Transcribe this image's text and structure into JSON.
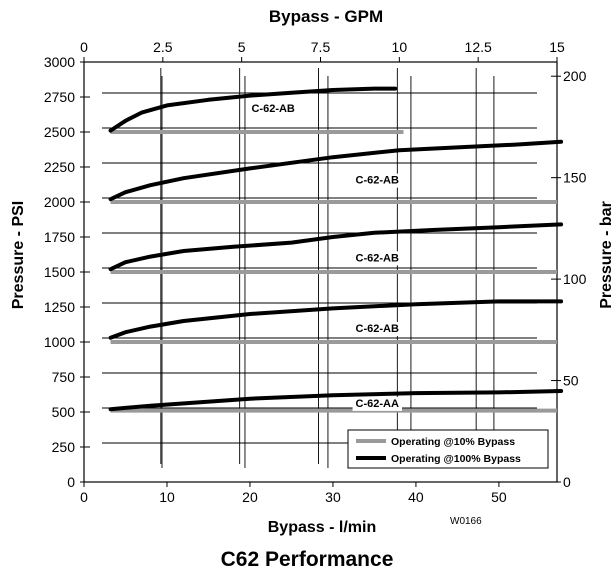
{
  "chart_data": {
    "type": "line",
    "title": "C62 Performance",
    "figure_id": "W0166",
    "x_top": {
      "label": "Bypass - GPM",
      "range": [
        0,
        15
      ],
      "ticks": [
        "0",
        "2.5",
        "5",
        "7.5",
        "10",
        "12.5",
        "15"
      ]
    },
    "x_bottom": {
      "label": "Bypass - l/min",
      "range": [
        0,
        57
      ],
      "ticks": [
        "0",
        "10",
        "20",
        "30",
        "40",
        "50"
      ]
    },
    "y_left": {
      "label": "Pressure - PSI",
      "range": [
        0,
        3000
      ],
      "ticks": [
        "0",
        "250",
        "500",
        "750",
        "1000",
        "1250",
        "1500",
        "1750",
        "2000",
        "2250",
        "2500",
        "2750",
        "3000"
      ]
    },
    "y_right": {
      "label": "Pressure - bar",
      "range": [
        0,
        207
      ],
      "ticks": [
        "0",
        "50",
        "100",
        "150",
        "200"
      ]
    },
    "grid": true,
    "legend_position": "bottom-right",
    "legend": [
      {
        "label": "Operating @10% Bypass",
        "color": "#9a9a9a"
      },
      {
        "label": "Operating @100% Bypass",
        "color": "#000000"
      }
    ],
    "series": [
      {
        "name": "C-62-AB",
        "color": "#000000",
        "x_unit": "l/min",
        "points": [
          [
            3.2,
            2510
          ],
          [
            5,
            2580
          ],
          [
            7,
            2640
          ],
          [
            10,
            2690
          ],
          [
            15,
            2730
          ],
          [
            20,
            2760
          ],
          [
            25,
            2780
          ],
          [
            30,
            2800
          ],
          [
            35,
            2810
          ],
          [
            37.5,
            2810
          ]
        ],
        "op10": {
          "pressure": 2500,
          "x_range": [
            3.2,
            38.5
          ]
        }
      },
      {
        "name": "C-62-AB",
        "color": "#000000",
        "x_unit": "l/min",
        "points": [
          [
            3.2,
            2020
          ],
          [
            5,
            2070
          ],
          [
            8,
            2120
          ],
          [
            12,
            2170
          ],
          [
            20,
            2240
          ],
          [
            30,
            2320
          ],
          [
            38,
            2370
          ],
          [
            45,
            2390
          ],
          [
            52,
            2410
          ],
          [
            57.5,
            2430
          ]
        ],
        "op10": {
          "pressure": 2000,
          "x_range": [
            3.2,
            58
          ]
        }
      },
      {
        "name": "C-62-AB",
        "color": "#000000",
        "x_unit": "l/min",
        "points": [
          [
            3.2,
            1520
          ],
          [
            5,
            1570
          ],
          [
            8,
            1610
          ],
          [
            12,
            1650
          ],
          [
            18,
            1680
          ],
          [
            25,
            1710
          ],
          [
            30,
            1750
          ],
          [
            35,
            1780
          ],
          [
            42,
            1800
          ],
          [
            50,
            1820
          ],
          [
            57.5,
            1840
          ]
        ],
        "op10": {
          "pressure": 1500,
          "x_range": [
            3.2,
            58
          ]
        }
      },
      {
        "name": "C-62-AB",
        "color": "#000000",
        "x_unit": "l/min",
        "points": [
          [
            3.2,
            1030
          ],
          [
            5,
            1070
          ],
          [
            8,
            1110
          ],
          [
            12,
            1150
          ],
          [
            20,
            1200
          ],
          [
            30,
            1240
          ],
          [
            40,
            1270
          ],
          [
            50,
            1290
          ],
          [
            57.5,
            1290
          ]
        ],
        "op10": {
          "pressure": 1000,
          "x_range": [
            3.2,
            58
          ]
        }
      },
      {
        "name": "C-62-AA",
        "color": "#000000",
        "x_unit": "l/min",
        "points": [
          [
            3.2,
            520
          ],
          [
            8,
            545
          ],
          [
            14,
            570
          ],
          [
            20,
            595
          ],
          [
            30,
            620
          ],
          [
            40,
            635
          ],
          [
            50,
            640
          ],
          [
            57.5,
            650
          ]
        ],
        "op10": {
          "pressure": 510,
          "x_range": [
            3.2,
            58
          ]
        }
      }
    ]
  }
}
